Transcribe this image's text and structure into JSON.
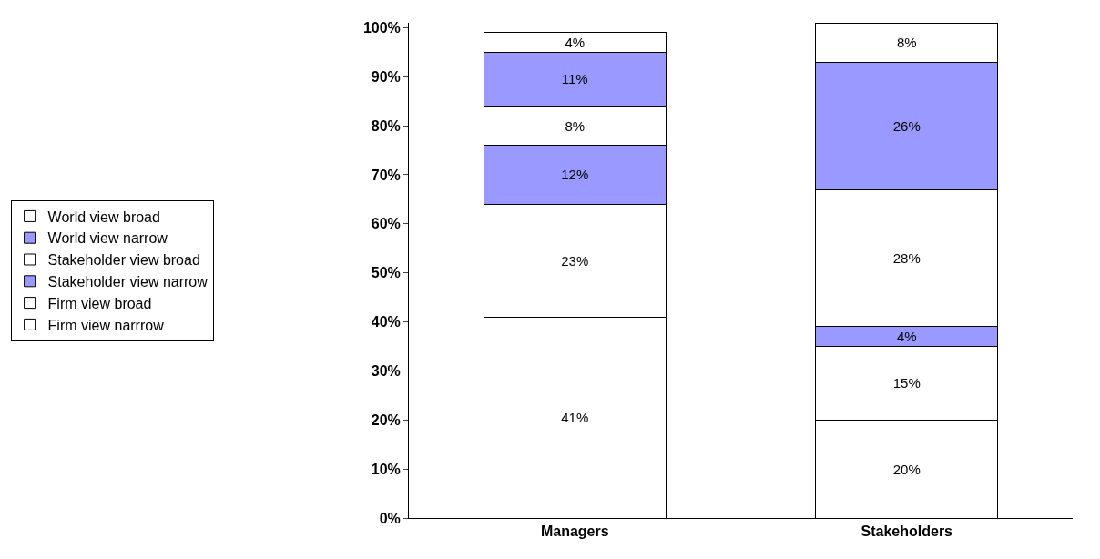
{
  "chart_data": {
    "type": "bar",
    "stacked": true,
    "categories": [
      "Managers",
      "Stakeholders"
    ],
    "series": [
      {
        "name": "Firm view narrrow",
        "color": "#ffffff",
        "values": [
          41,
          20
        ],
        "value_labels": [
          "41%",
          "20%"
        ]
      },
      {
        "name": "Firm view broad",
        "color": "#ffffff",
        "values": [
          23,
          15
        ],
        "value_labels": [
          "23%",
          "15%"
        ]
      },
      {
        "name": "Stakeholder view narrow",
        "color": "#9999ff",
        "values": [
          12,
          4
        ],
        "value_labels": [
          "12%",
          "4%"
        ]
      },
      {
        "name": "Stakeholder view broad",
        "color": "#ffffff",
        "values": [
          8,
          28
        ],
        "value_labels": [
          "8%",
          "28%"
        ]
      },
      {
        "name": "World view narrow",
        "color": "#9999ff",
        "values": [
          11,
          26
        ],
        "value_labels": [
          "11%",
          "26%"
        ]
      },
      {
        "name": "World view broad",
        "color": "#ffffff",
        "values": [
          4,
          8
        ],
        "value_labels": [
          "4%",
          "8%"
        ]
      }
    ],
    "ylim": [
      0,
      101
    ],
    "yticks": [
      {
        "value": 0,
        "label": "0%"
      },
      {
        "value": 10,
        "label": "10%"
      },
      {
        "value": 20,
        "label": "20%"
      },
      {
        "value": 30,
        "label": "30%"
      },
      {
        "value": 40,
        "label": "40%"
      },
      {
        "value": 50,
        "label": "50%"
      },
      {
        "value": 60,
        "label": "60%"
      },
      {
        "value": 70,
        "label": "70%"
      },
      {
        "value": 80,
        "label": "80%"
      },
      {
        "value": 90,
        "label": "90%"
      },
      {
        "value": 100,
        "label": "100%"
      }
    ],
    "legend": "left"
  }
}
